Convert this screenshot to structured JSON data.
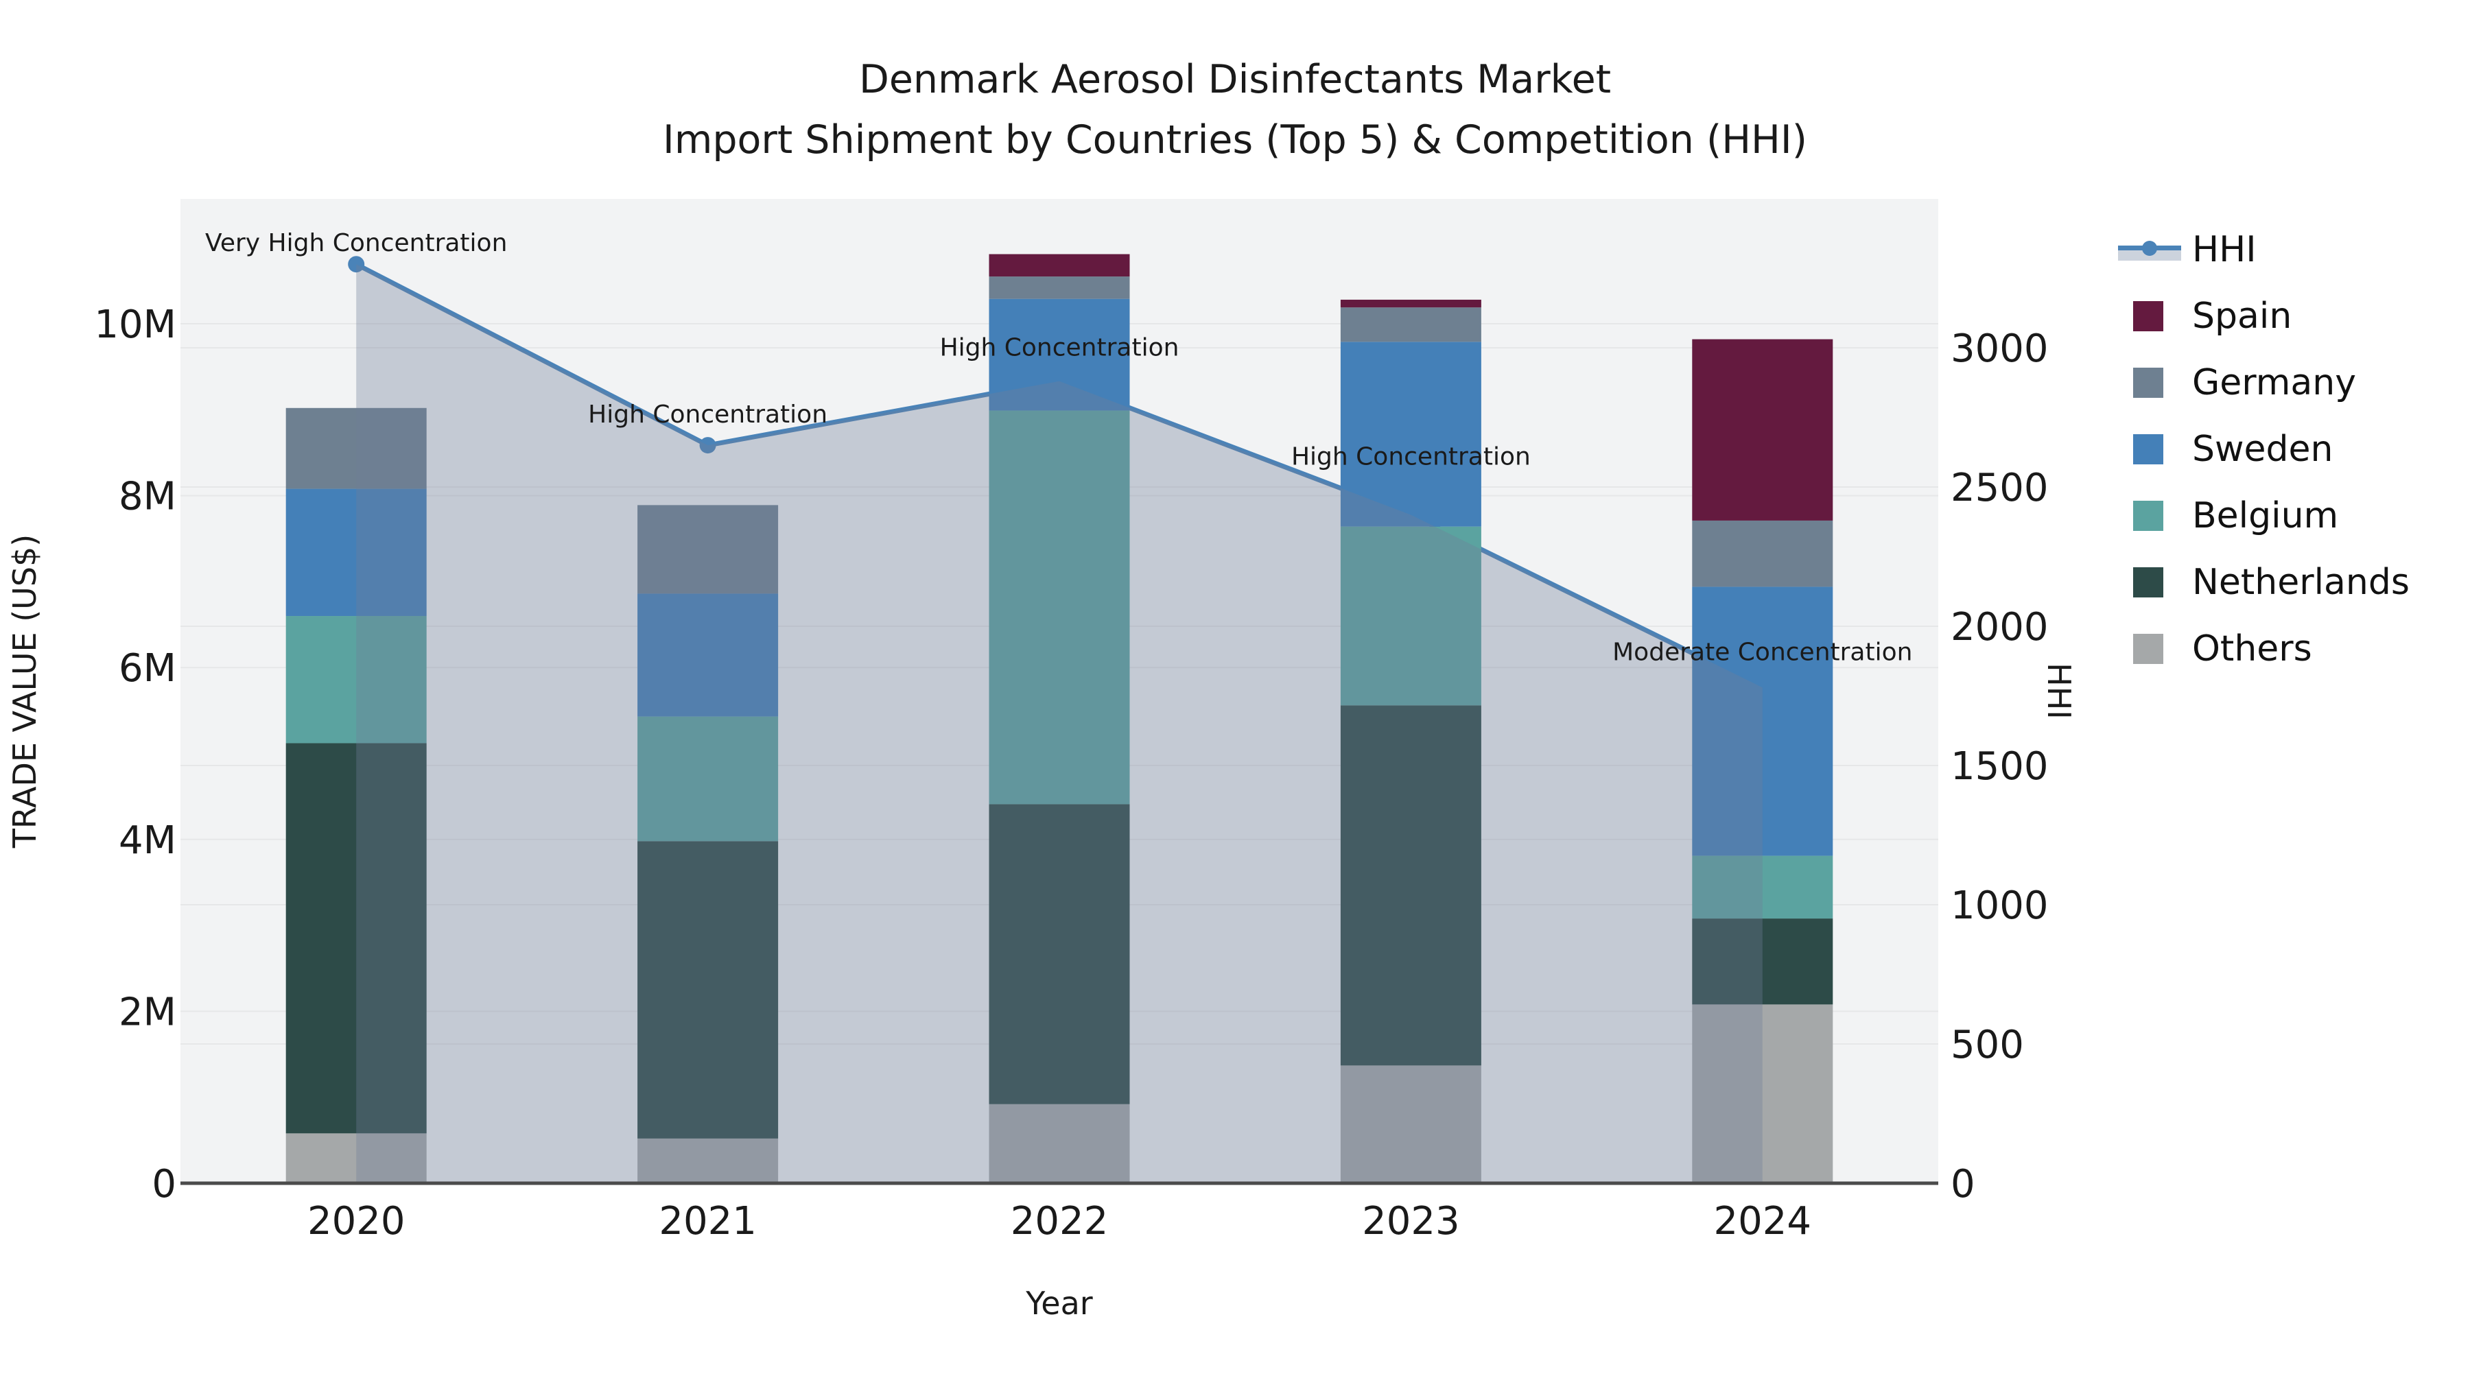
{
  "title": {
    "line1": "Denmark Aerosol Disinfectants Market",
    "line2": "Import Shipment by Countries (Top 5) & Competition (HHI)"
  },
  "axes": {
    "x": {
      "title": "Year",
      "categories": [
        "2020",
        "2021",
        "2022",
        "2023",
        "2024"
      ]
    },
    "y_left": {
      "title": "TRADE VALUE (US$)",
      "tick_labels": [
        "0",
        "2M",
        "4M",
        "6M",
        "8M",
        "10M"
      ],
      "tick_values": [
        0,
        2,
        4,
        6,
        8,
        10
      ]
    },
    "y_right": {
      "title": "HHI",
      "tick_labels": [
        "0",
        "500",
        "1000",
        "1500",
        "2000",
        "2500",
        "3000"
      ],
      "tick_values": [
        0,
        500,
        1000,
        1500,
        2000,
        2500,
        3000
      ]
    }
  },
  "legend": {
    "items": [
      {
        "id": "hhi",
        "label": "HHI",
        "type": "line",
        "color": "#4a83b8"
      },
      {
        "id": "spain",
        "label": "Spain",
        "type": "swatch",
        "color": "#641a3f"
      },
      {
        "id": "germany",
        "label": "Germany",
        "type": "swatch",
        "color": "#6e8091"
      },
      {
        "id": "sweden",
        "label": "Sweden",
        "type": "swatch",
        "color": "#4480b8"
      },
      {
        "id": "belgium",
        "label": "Belgium",
        "type": "swatch",
        "color": "#5ba3a0"
      },
      {
        "id": "netherlands",
        "label": "Netherlands",
        "type": "swatch",
        "color": "#2d4b48"
      },
      {
        "id": "others",
        "label": "Others",
        "type": "swatch",
        "color": "#a5a8a9"
      }
    ]
  },
  "annotations": [
    {
      "year": "2020",
      "text": "Very High Concentration"
    },
    {
      "year": "2021",
      "text": "High Concentration"
    },
    {
      "year": "2022",
      "text": "High Concentration"
    },
    {
      "year": "2023",
      "text": "High Concentration"
    },
    {
      "year": "2024",
      "text": "Moderate Concentration"
    }
  ],
  "chart_data": {
    "type": "bar+line",
    "categories": [
      "2020",
      "2021",
      "2022",
      "2023",
      "2024"
    ],
    "bar_unit": "US$ millions",
    "stack_order_bottom_to_top": [
      "Others",
      "Netherlands",
      "Belgium",
      "Sweden",
      "Germany",
      "Spain"
    ],
    "series": [
      {
        "name": "Others",
        "color": "#a5a8a9",
        "values": [
          0.58,
          0.52,
          0.92,
          1.37,
          2.08
        ]
      },
      {
        "name": "Netherlands",
        "color": "#2d4b48",
        "values": [
          4.54,
          3.46,
          3.49,
          4.19,
          1.0
        ]
      },
      {
        "name": "Belgium",
        "color": "#5ba3a0",
        "values": [
          1.48,
          1.45,
          4.58,
          2.08,
          0.73
        ]
      },
      {
        "name": "Sweden",
        "color": "#4480b8",
        "values": [
          1.48,
          1.43,
          1.3,
          2.15,
          3.13
        ]
      },
      {
        "name": "Germany",
        "color": "#6e8091",
        "values": [
          0.94,
          1.03,
          0.26,
          0.4,
          0.77
        ]
      },
      {
        "name": "Spain",
        "color": "#641a3f",
        "values": [
          0.0,
          0.0,
          0.26,
          0.09,
          2.11
        ]
      }
    ],
    "bar_totals": [
      9.02,
      7.89,
      10.81,
      10.28,
      9.82
    ],
    "line_series": {
      "name": "HHI",
      "color": "#4a83b8",
      "area_fill": "rgba(111,127,153,0.35)",
      "values": [
        3300,
        2650,
        2880,
        2400,
        1780
      ]
    },
    "xlabel": "Year",
    "ylabel_left": "TRADE VALUE (US$)",
    "ylabel_right": "HHI",
    "y_left_range_millions": [
      0,
      11.45
    ],
    "y_right_range": [
      0,
      3534
    ],
    "grid": true,
    "legend_position": "right"
  },
  "colors": {
    "figure_bg": "#ffffff",
    "plot_bg": "#f2f3f4",
    "gridline": "#e6e7e8",
    "axis_line": "#4b4b4b",
    "text": "#1a1a1a",
    "hhi_line": "#4a83b8",
    "hhi_area": "rgba(111,127,153,0.35)",
    "legend_band": "#ccd3dd"
  }
}
